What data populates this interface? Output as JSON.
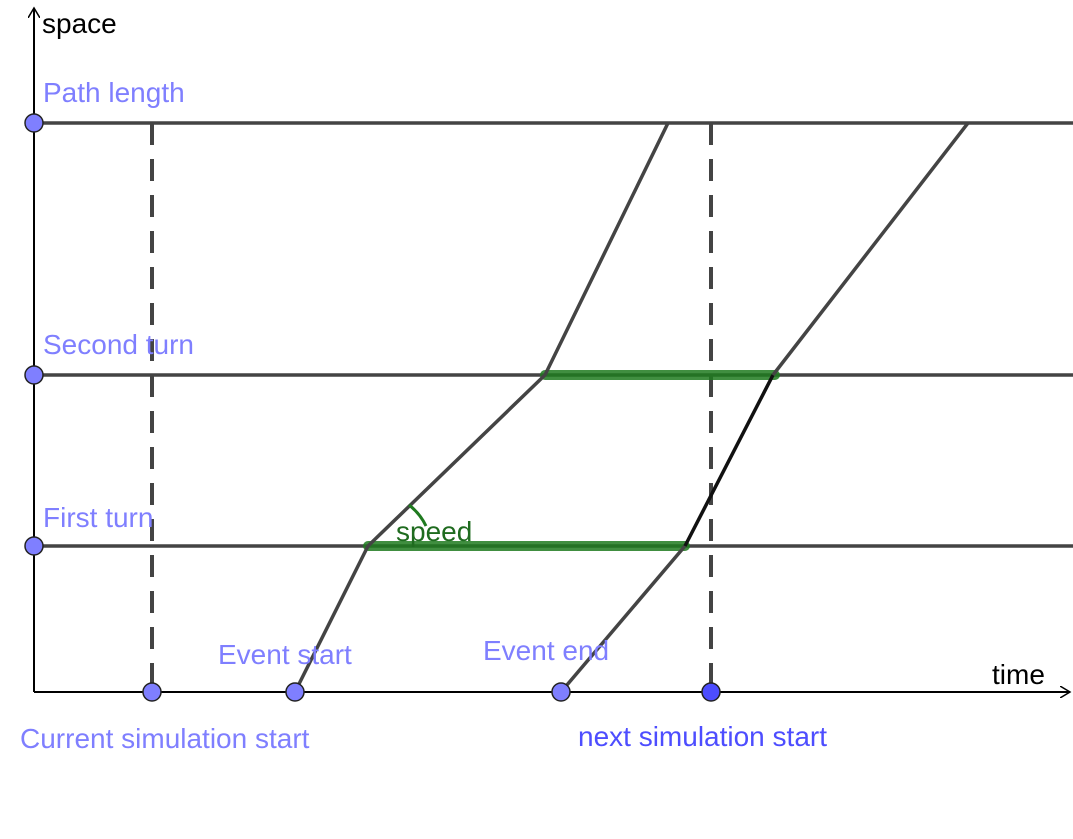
{
  "axes": {
    "x_label": "time",
    "y_label": "space"
  },
  "levels": {
    "path_length": "Path length",
    "second_turn": "Second turn",
    "first_turn": "First turn"
  },
  "time_labels": {
    "current_simulation_start": "Current simulation start",
    "event_start": "Event start",
    "event_end": "Event end",
    "next_simulation_start": "next simulation start"
  },
  "annotations": {
    "speed": "speed"
  },
  "colors": {
    "axis": "#000000",
    "gridline": "#444444",
    "trajectory": "#444444",
    "highlight_green": "#1f7a1f",
    "label_blue": "#7f7fff",
    "label_blue_dark": "#4d4dff",
    "point_fill": "#7f7fff",
    "point_fill_dark": "#4d4dff"
  }
}
